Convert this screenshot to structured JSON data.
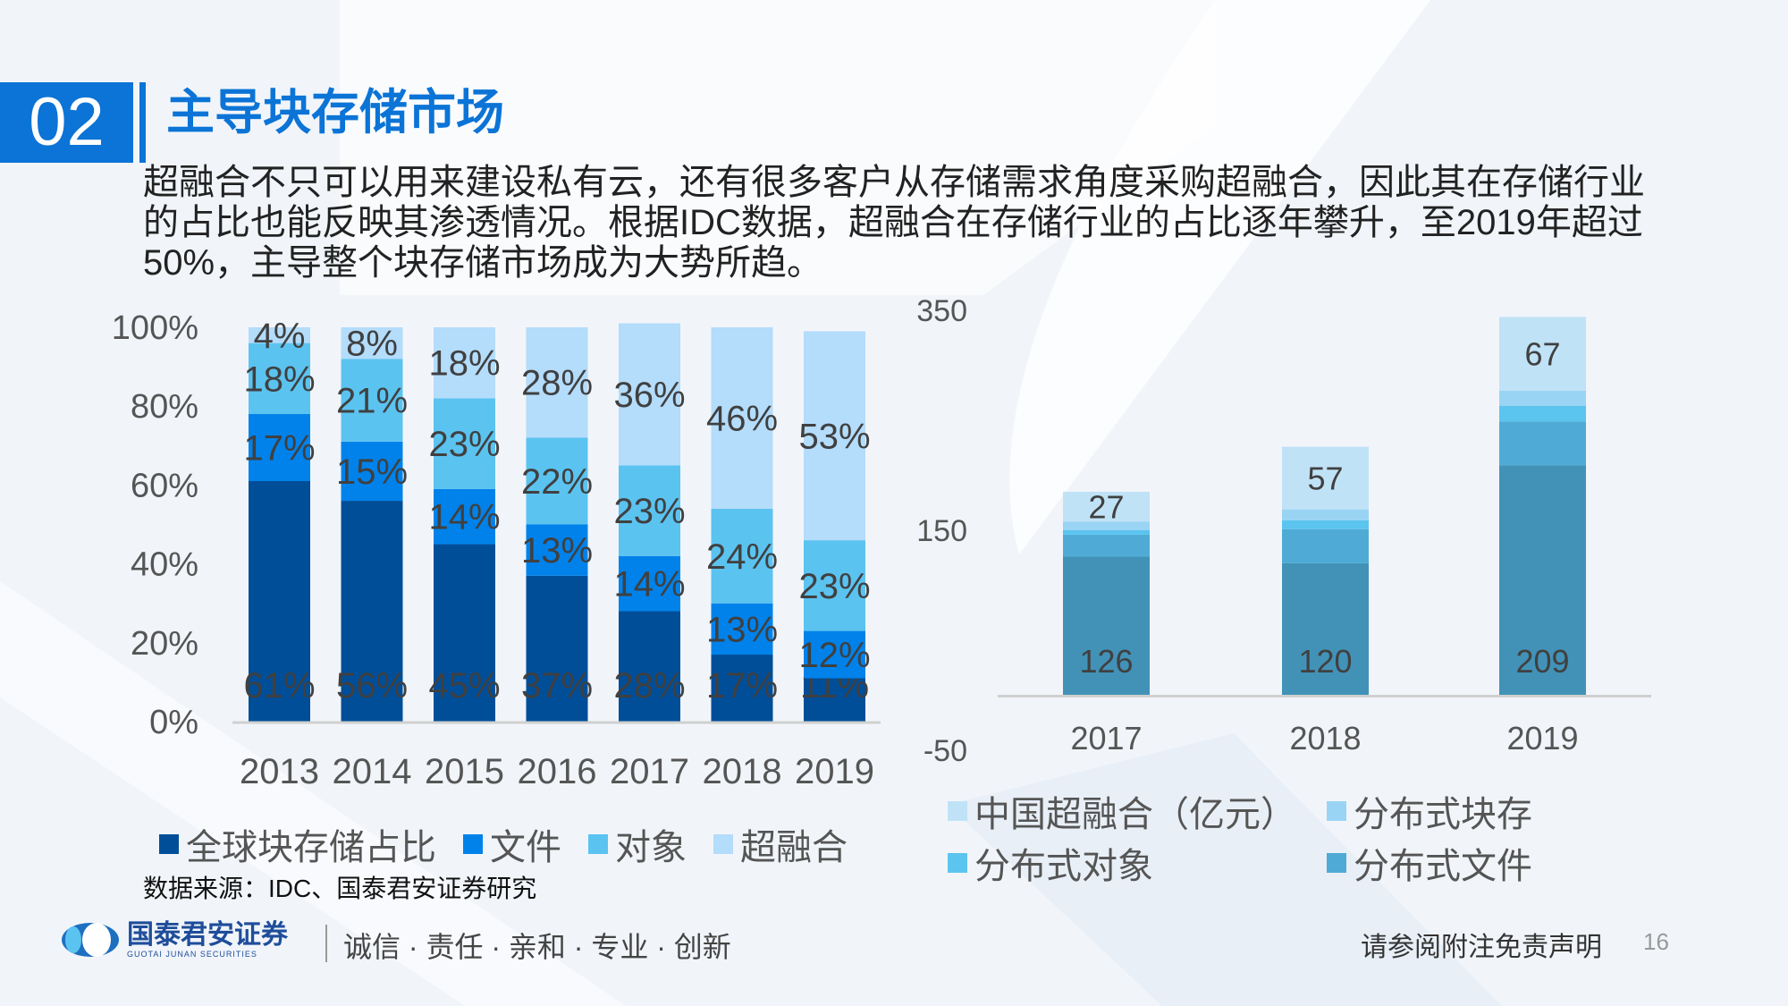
{
  "header": {
    "section_number": "02",
    "title": "主导块存储市场"
  },
  "body_lines": [
    "超融合不只可以用来建设私有云，还有很多客户从存储需求角度采购超融合，因此其在存储行业",
    "的占比也能反映其渗透情况。根据IDC数据，超融合在存储行业的占比逐年攀升，至2019年超过",
    "50%，主导整个块存储市场成为大势所趋。"
  ],
  "chart_data": [
    {
      "type": "bar",
      "stacked": true,
      "categories": [
        "2013",
        "2014",
        "2015",
        "2016",
        "2017",
        "2018",
        "2019"
      ],
      "y_ticks": [
        "0%",
        "20%",
        "40%",
        "60%",
        "80%",
        "100%"
      ],
      "ylim": [
        0,
        100
      ],
      "legend_position": "bottom",
      "series": [
        {
          "name": "全球块存储占比",
          "color": "#004e98",
          "values": [
            61,
            56,
            45,
            37,
            28,
            17,
            11
          ],
          "labels": [
            "61%",
            "56%",
            "45%",
            "37%",
            "28%",
            "17%",
            "11%"
          ]
        },
        {
          "name": "文件",
          "color": "#0082ea",
          "values": [
            17,
            15,
            14,
            13,
            14,
            13,
            12
          ],
          "labels": [
            "17%",
            "15%",
            "14%",
            "13%",
            "14%",
            "13%",
            "12%"
          ]
        },
        {
          "name": "对象",
          "color": "#5bc3f0",
          "values": [
            18,
            21,
            23,
            22,
            23,
            24,
            23
          ],
          "labels": [
            "18%",
            "21%",
            "23%",
            "22%",
            "23%",
            "24%",
            "23%"
          ]
        },
        {
          "name": "超融合",
          "color": "#b4dcfb",
          "values": [
            4,
            8,
            18,
            28,
            36,
            46,
            53
          ],
          "labels": [
            "4%",
            "8%",
            "18%",
            "28%",
            "36%",
            "46%",
            "53%"
          ]
        }
      ]
    },
    {
      "type": "bar",
      "stacked": true,
      "categories": [
        "2017",
        "2018",
        "2019"
      ],
      "y_ticks": [
        "-50",
        "150",
        "350"
      ],
      "ylim": [
        -50,
        350
      ],
      "legend_position": "bottom",
      "series": [
        {
          "color": "#4292b8",
          "values": [
            126,
            120,
            209
          ],
          "labels": [
            "126",
            "120",
            "209"
          ]
        },
        {
          "name": "分布式文件",
          "color": "#4fabd5",
          "values": [
            20,
            31,
            40
          ]
        },
        {
          "name": "分布式对象",
          "color": "#5bc4ef",
          "values": [
            4,
            8,
            14
          ]
        },
        {
          "name": "分布式块存",
          "color": "#9ad4f4",
          "values": [
            8,
            10,
            14
          ]
        },
        {
          "name": "中国超融合（亿元）",
          "color": "#c0e2f7",
          "values": [
            27,
            57,
            67
          ],
          "labels": [
            "27",
            "57",
            "67"
          ]
        }
      ],
      "legend_order": [
        4,
        3,
        2,
        1
      ]
    }
  ],
  "source": "数据来源：IDC、国泰君安证券研究",
  "footer": {
    "logo_text": "国泰君安证券",
    "logo_sub": "GUOTAI JUNAN SECURITIES",
    "slogan": "诚信 · 责任 · 亲和 · 专业 · 创新",
    "disclaimer": "请参阅附注免责声明",
    "page_number": "16"
  }
}
